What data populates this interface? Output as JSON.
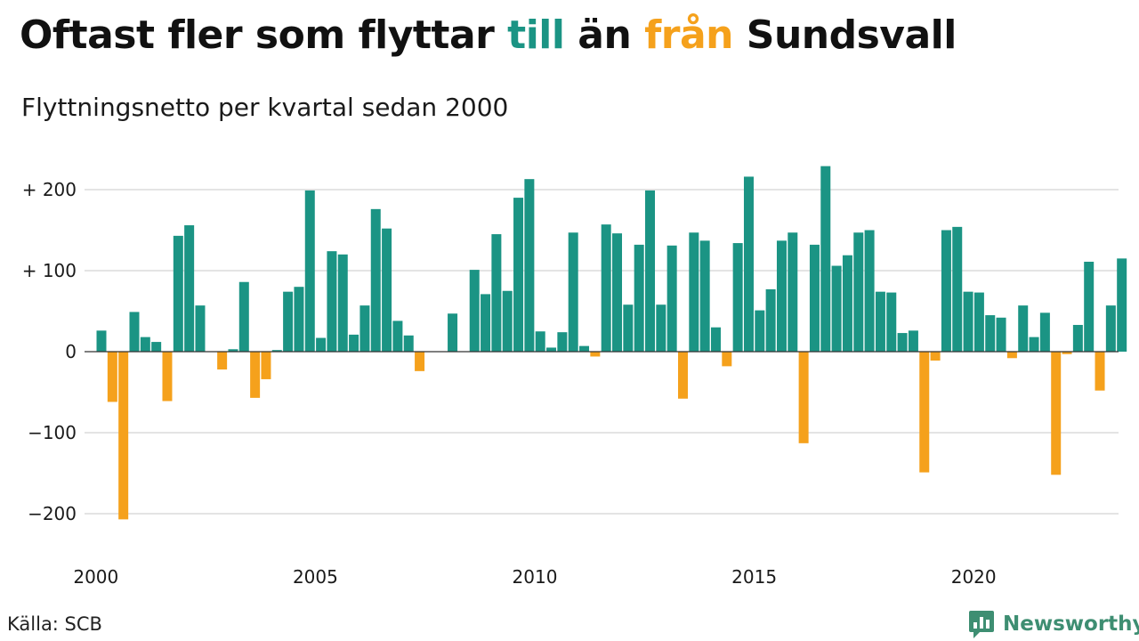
{
  "title": {
    "part1": "Oftast fler som flyttar ",
    "part2": "till",
    "part3": " än ",
    "part4": "från",
    "part5": " Sundsvall"
  },
  "subtitle": "Flyttningsnetto per kvartal sedan 2000",
  "source": "Källa: SCB",
  "brand": {
    "name": "Newsworthy",
    "icon": "newsworthy-logo-icon"
  },
  "colors": {
    "positive": "#1b9484",
    "negative": "#f5a11c",
    "grid": "#dcdcdc",
    "brand": "#3e8e72"
  },
  "chart_data": {
    "type": "bar",
    "title": "Oftast fler som flyttar till än från Sundsvall",
    "subtitle": "Flyttningsnetto per kvartal sedan 2000",
    "xlabel": "",
    "ylabel": "",
    "ylim": [
      -230,
      230
    ],
    "yticks": [
      200,
      100,
      0,
      -100,
      -200
    ],
    "ytick_labels": [
      "+ 200",
      "+ 100",
      "0",
      "−100",
      "−200"
    ],
    "xticks": [
      "2000",
      "2005",
      "2010",
      "2015",
      "2020"
    ],
    "grid": true,
    "categories": [
      "2000 K1",
      "2000 K2",
      "2000 K3",
      "2000 K4",
      "2001 K1",
      "2001 K2",
      "2001 K3",
      "2001 K4",
      "2002 K1",
      "2002 K2",
      "2002 K3",
      "2002 K4",
      "2003 K1",
      "2003 K2",
      "2003 K3",
      "2003 K4",
      "2004 K1",
      "2004 K2",
      "2004 K3",
      "2004 K4",
      "2005 K1",
      "2005 K2",
      "2005 K3",
      "2005 K4",
      "2006 K1",
      "2006 K2",
      "2006 K3",
      "2006 K4",
      "2007 K1",
      "2007 K2",
      "2007 K3",
      "2007 K4",
      "2008 K1",
      "2008 K2",
      "2008 K3",
      "2008 K4",
      "2009 K1",
      "2009 K2",
      "2009 K3",
      "2009 K4",
      "2010 K1",
      "2010 K2",
      "2010 K3",
      "2010 K4",
      "2011 K1",
      "2011 K2",
      "2011 K3",
      "2011 K4",
      "2012 K1",
      "2012 K2",
      "2012 K3",
      "2012 K4",
      "2013 K1",
      "2013 K2",
      "2013 K3",
      "2013 K4",
      "2014 K1",
      "2014 K2",
      "2014 K3",
      "2014 K4",
      "2015 K1",
      "2015 K2",
      "2015 K3",
      "2015 K4",
      "2016 K1",
      "2016 K2",
      "2016 K3",
      "2016 K4",
      "2017 K1",
      "2017 K2",
      "2017 K3",
      "2017 K4",
      "2018 K1",
      "2018 K2",
      "2018 K3",
      "2018 K4",
      "2019 K1",
      "2019 K2",
      "2019 K3",
      "2019 K4",
      "2020 K1",
      "2020 K2",
      "2020 K3",
      "2020 K4",
      "2021 K1",
      "2021 K2",
      "2021 K3",
      "2021 K4",
      "2022 K1",
      "2022 K2",
      "2022 K3",
      "2022 K4",
      "2023 K1",
      "2023 K2"
    ],
    "values": [
      26,
      -62,
      -207,
      49,
      18,
      12,
      -61,
      143,
      156,
      57,
      0,
      -22,
      3,
      86,
      -57,
      -34,
      2,
      74,
      80,
      199,
      17,
      124,
      120,
      21,
      57,
      176,
      152,
      38,
      20,
      -24,
      0,
      0,
      47,
      0,
      101,
      71,
      145,
      75,
      190,
      213,
      25,
      5,
      24,
      147,
      7,
      -6,
      157,
      146,
      58,
      132,
      199,
      58,
      131,
      -58,
      147,
      137,
      30,
      -18,
      134,
      216,
      51,
      77,
      137,
      147,
      -113,
      132,
      229,
      106,
      119,
      147,
      150,
      74,
      73,
      23,
      26,
      -149,
      -11,
      150,
      154,
      74,
      73,
      45,
      42,
      -8,
      57,
      18,
      48,
      -152,
      -3,
      33,
      111,
      -48,
      57,
      115
    ]
  }
}
